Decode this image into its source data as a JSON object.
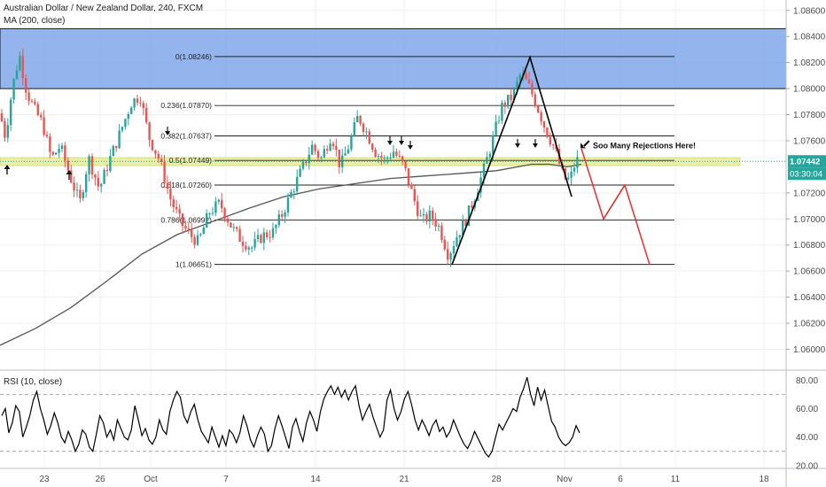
{
  "header": {
    "title": "Australian Dollar / New Zealand Dollar, 240, FXCM",
    "indicator": "MA (200, close)"
  },
  "rsi_panel": {
    "title": "RSI (10, close)"
  },
  "annotation": "Soo Many Rejections Here!",
  "price_badge": {
    "price": "1.07442",
    "countdown": "03:30:04"
  },
  "colors": {
    "up": "#26a69a",
    "down": "#ef5350",
    "zone": "#6f9be6",
    "ma": "#555555",
    "rsi": "#000000",
    "marker": "#2962ff",
    "band": "#e9f0a6",
    "green_path": "#2eb872",
    "red_path": "#ef2b2b"
  },
  "chart_data": [
    {
      "type": "candlestick",
      "symbol": "AUDNZD",
      "ylim": [
        1.0584,
        1.0868
      ],
      "y_ticks": [
        "1.08600",
        "1.08400",
        "1.08200",
        "1.08000",
        "1.07800",
        "1.07600",
        "1.07200",
        "1.07000",
        "1.06800",
        "1.06600",
        "1.06400",
        "1.06200",
        "1.06000"
      ],
      "x_ticks": [
        "23",
        "26",
        "Oct",
        "7",
        "14",
        "21",
        "28",
        "Nov",
        "6",
        "11",
        "18"
      ],
      "supply_zone": [
        1.08,
        1.0846
      ],
      "fibonacci": [
        {
          "level": "0",
          "price": "1.08246"
        },
        {
          "level": "0.236",
          "price": "1.07870"
        },
        {
          "level": "0.382",
          "price": "1.07637"
        },
        {
          "level": "0.5",
          "price": "1.07449"
        },
        {
          "level": "0.618",
          "price": "1.07260"
        },
        {
          "level": "0.786",
          "price": "1.06992"
        },
        {
          "level": "1",
          "price": "1.06651"
        }
      ],
      "pattern": [
        1.0665,
        1.0824,
        1.0717
      ],
      "projection_green": [
        1.07,
        1.0726
      ],
      "projection_red": [
        1.0754,
        1.07,
        1.0726,
        1.0665
      ]
    },
    {
      "type": "line",
      "name": "RSI (10, close)",
      "ylim": [
        18,
        87
      ],
      "y_ticks": [
        "80.00",
        "60.00",
        "40.00",
        "20.00"
      ],
      "levels": [
        70,
        30
      ],
      "values": [
        55,
        60,
        43,
        50,
        62,
        58,
        40,
        47,
        55,
        66,
        72,
        60,
        52,
        42,
        48,
        57,
        50,
        40,
        36,
        44,
        38,
        30,
        35,
        45,
        42,
        33,
        30,
        42,
        55,
        50,
        40,
        45,
        38,
        52,
        46,
        40,
        38,
        45,
        62,
        52,
        41,
        46,
        38,
        35,
        40,
        52,
        45,
        42,
        58,
        66,
        72,
        68,
        55,
        50,
        58,
        63,
        52,
        44,
        40,
        36,
        47,
        40,
        33,
        41,
        34,
        45,
        42,
        36,
        43,
        55,
        48,
        38,
        33,
        41,
        47,
        42,
        30,
        34,
        46,
        55,
        48,
        40,
        32,
        47,
        53,
        44,
        37,
        50,
        58,
        52,
        44,
        58,
        67,
        72,
        76,
        70,
        75,
        68,
        73,
        66,
        72,
        76,
        62,
        52,
        58,
        63,
        54,
        47,
        40,
        45,
        66,
        73,
        60,
        52,
        58,
        67,
        72,
        63,
        52,
        45,
        52,
        47,
        41,
        48,
        52,
        44,
        47,
        40,
        44,
        52,
        46,
        40,
        35,
        32,
        37,
        44,
        39,
        34,
        29,
        26,
        30,
        40,
        49,
        45,
        50,
        55,
        60,
        58,
        68,
        74,
        82,
        70,
        62,
        75,
        66,
        73,
        62,
        51,
        47,
        40,
        36,
        34,
        36,
        40,
        48,
        43
      ]
    }
  ]
}
